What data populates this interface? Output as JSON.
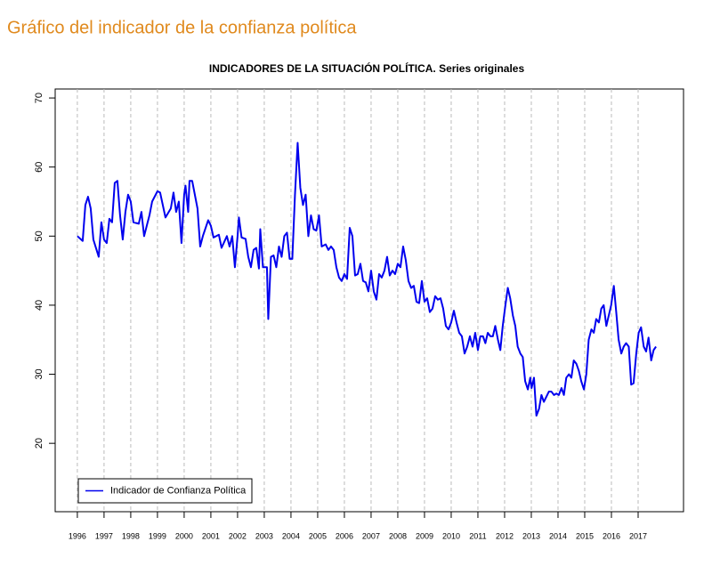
{
  "page_title": "Gráfico del indicador de la confianza política",
  "chart_data": {
    "type": "line",
    "title": "INDICADORES DE LA SITUACIÓN POLÍTICA. Series originales",
    "x": [
      1996.0,
      1996.2,
      1996.3,
      1996.4,
      1996.5,
      1996.6,
      1996.8,
      1996.9,
      1997.0,
      1997.1,
      1997.2,
      1997.3,
      1997.4,
      1997.5,
      1997.6,
      1997.7,
      1997.8,
      1997.9,
      1998.0,
      1998.1,
      1998.3,
      1998.4,
      1998.5,
      1998.6,
      1998.7,
      1998.8,
      1999.0,
      1999.1,
      1999.3,
      1999.5,
      1999.6,
      1999.7,
      1999.8,
      1999.9,
      2000.0,
      2000.05,
      2000.15,
      2000.2,
      2000.3,
      2000.4,
      2000.5,
      2000.6,
      2000.7,
      2000.9,
      2001.0,
      2001.1,
      2001.3,
      2001.4,
      2001.6,
      2001.7,
      2001.8,
      2001.9,
      2002.0,
      2002.05,
      2002.15,
      2002.3,
      2002.4,
      2002.5,
      2002.6,
      2002.7,
      2002.8,
      2002.85,
      2002.95,
      2003.1,
      2003.15,
      2003.25,
      2003.35,
      2003.45,
      2003.55,
      2003.65,
      2003.75,
      2003.85,
      2003.95,
      2004.05,
      2004.15,
      2004.25,
      2004.35,
      2004.45,
      2004.55,
      2004.65,
      2004.75,
      2004.85,
      2004.95,
      2005.05,
      2005.15,
      2005.3,
      2005.4,
      2005.5,
      2005.6,
      2005.7,
      2005.8,
      2005.9,
      2006.0,
      2006.1,
      2006.2,
      2006.3,
      2006.4,
      2006.5,
      2006.6,
      2006.7,
      2006.8,
      2006.9,
      2007.0,
      2007.1,
      2007.2,
      2007.3,
      2007.4,
      2007.5,
      2007.6,
      2007.7,
      2007.8,
      2007.9,
      2008.0,
      2008.1,
      2008.2,
      2008.3,
      2008.4,
      2008.5,
      2008.6,
      2008.7,
      2008.8,
      2008.9,
      2009.0,
      2009.1,
      2009.2,
      2009.3,
      2009.4,
      2009.5,
      2009.6,
      2009.7,
      2009.8,
      2009.9,
      2010.0,
      2010.1,
      2010.2,
      2010.3,
      2010.4,
      2010.5,
      2010.6,
      2010.7,
      2010.8,
      2010.9,
      2011.0,
      2011.09,
      2011.19,
      2011.28,
      2011.37,
      2011.47,
      2011.56,
      2011.65,
      2011.75,
      2011.84,
      2011.93,
      2012.03,
      2012.12,
      2012.21,
      2012.31,
      2012.4,
      2012.49,
      2012.59,
      2012.68,
      2012.77,
      2012.87,
      2012.96,
      2013.01,
      2013.1,
      2013.19,
      2013.29,
      2013.38,
      2013.47,
      2013.57,
      2013.66,
      2013.75,
      2013.85,
      2013.94,
      2014.03,
      2014.13,
      2014.22,
      2014.31,
      2014.41,
      2014.5,
      2014.59,
      2014.69,
      2014.78,
      2014.87,
      2014.97,
      2015.06,
      2015.15,
      2015.25,
      2015.34,
      2015.43,
      2015.53,
      2015.62,
      2015.71,
      2015.81,
      2015.9,
      2015.99,
      2016.09,
      2016.18,
      2016.27,
      2016.37,
      2016.46,
      2016.55,
      2016.65,
      2016.74,
      2016.83,
      2016.93,
      2017.02,
      2017.11,
      2017.21,
      2017.3,
      2017.39,
      2017.49,
      2017.58,
      2017.67
    ],
    "series": [
      {
        "name": "Indicador de Confianza Política",
        "color": "#0000ee",
        "values": [
          50,
          49.3,
          54.5,
          55.7,
          54,
          49.5,
          47,
          52,
          49.5,
          49,
          52.5,
          52,
          57.7,
          58,
          53,
          49.5,
          53.5,
          56,
          55,
          52,
          51.8,
          53.5,
          50,
          51.5,
          53,
          55,
          56.5,
          56.3,
          52.7,
          54,
          56.3,
          53.5,
          55,
          49,
          56,
          57.3,
          53.5,
          58,
          58,
          56,
          54,
          48.5,
          50,
          52.3,
          51.5,
          49.8,
          50.2,
          48.3,
          50,
          48.5,
          50,
          45.5,
          50,
          52.7,
          49.8,
          49.6,
          47,
          45.5,
          48,
          48.3,
          45.3,
          51,
          45.5,
          45.5,
          38,
          47,
          47.2,
          45.5,
          48.5,
          47,
          50,
          50.5,
          46.7,
          46.7,
          56,
          63.5,
          57,
          54.5,
          56,
          50,
          53,
          51,
          50.8,
          53,
          48.5,
          48.8,
          48,
          48.5,
          48,
          45.5,
          44,
          43.5,
          44.5,
          43.8,
          51.2,
          50,
          44.3,
          44.5,
          46,
          43.5,
          43.3,
          42,
          45,
          42,
          40.8,
          44.5,
          44,
          45,
          47,
          44.3,
          45,
          44.5,
          46,
          45.5,
          48.5,
          46.5,
          43.5,
          42.5,
          42.8,
          40.5,
          40.3,
          43.5,
          40.5,
          41,
          39,
          39.5,
          41.3,
          40.8,
          41,
          39.5,
          37,
          36.5,
          37.5,
          39.2,
          37.5,
          36,
          35.5,
          33,
          34,
          35.5,
          34,
          36,
          33.5,
          35.5,
          35.5,
          34.5,
          36,
          35.5,
          35.5,
          37,
          35,
          33.5,
          37,
          40,
          42.5,
          41,
          38.5,
          37,
          34,
          33,
          32.5,
          29,
          27.8,
          29.5,
          28,
          29.5,
          24,
          25,
          27,
          26,
          26.8,
          27.5,
          27.5,
          27,
          27.2,
          27,
          28,
          27,
          29.5,
          30,
          29.5,
          32,
          31.5,
          30.5,
          29,
          27.8,
          30,
          35,
          36.5,
          36,
          38,
          37.5,
          39.5,
          40,
          37,
          38.5,
          40,
          42.8,
          39,
          35,
          33,
          34,
          34.5,
          34,
          28.5,
          28.7,
          33,
          36,
          36.8,
          34,
          33.3,
          35.3,
          32,
          33.5,
          34
        ]
      }
    ],
    "xlim": [
      1995.17,
      2018.7
    ],
    "ylim": [
      10.1,
      71.3
    ],
    "xticks": [
      1996,
      1997,
      1998,
      1999,
      2000,
      2001,
      2002,
      2003,
      2004,
      2005,
      2006,
      2007,
      2008,
      2009,
      2010,
      2011,
      2012,
      2013,
      2014,
      2015,
      2016,
      2017
    ],
    "yticks": [
      20,
      30,
      40,
      50,
      60,
      70
    ],
    "grid": "x-dashed",
    "legend": "bottomleft"
  }
}
